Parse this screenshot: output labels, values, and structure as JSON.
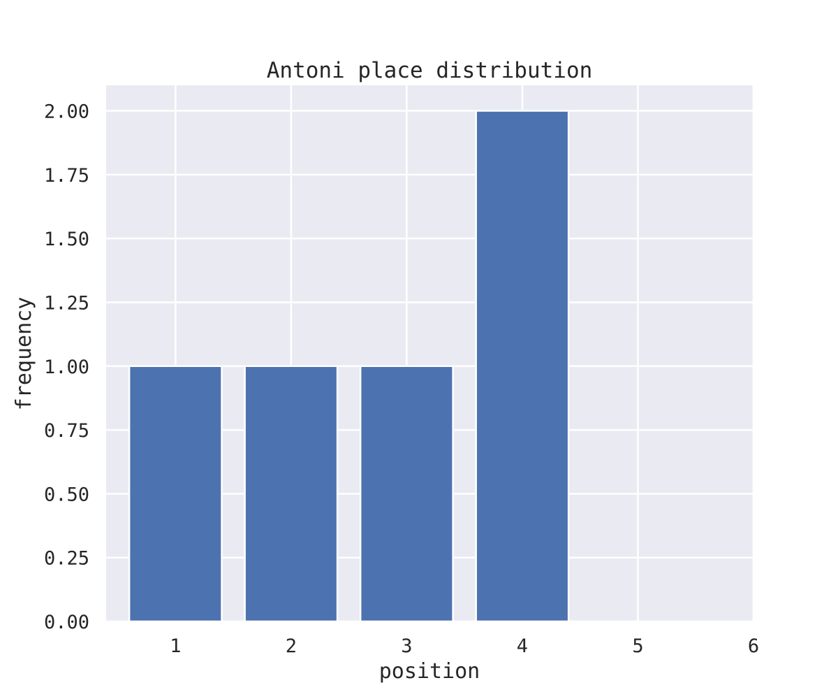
{
  "chart_data": {
    "type": "bar",
    "title": "Antoni place distribution",
    "xlabel": "position",
    "ylabel": "frequency",
    "categories": [
      1,
      2,
      3,
      4
    ],
    "values": [
      1,
      1,
      1,
      2
    ],
    "xlim": [
      0.4,
      6
    ],
    "ylim": [
      0,
      2.1
    ],
    "xticks": [
      "1",
      "2",
      "3",
      "4",
      "5",
      "6"
    ],
    "yticks": [
      "0.00",
      "0.25",
      "0.50",
      "0.75",
      "1.00",
      "1.25",
      "1.50",
      "1.75",
      "2.00"
    ],
    "bar_width": 0.8,
    "grid": true,
    "legend": "none",
    "colors": {
      "bar": "#4c72b0",
      "plot_background": "#eaeaf2",
      "grid": "#ffffff",
      "text": "#262626"
    }
  }
}
